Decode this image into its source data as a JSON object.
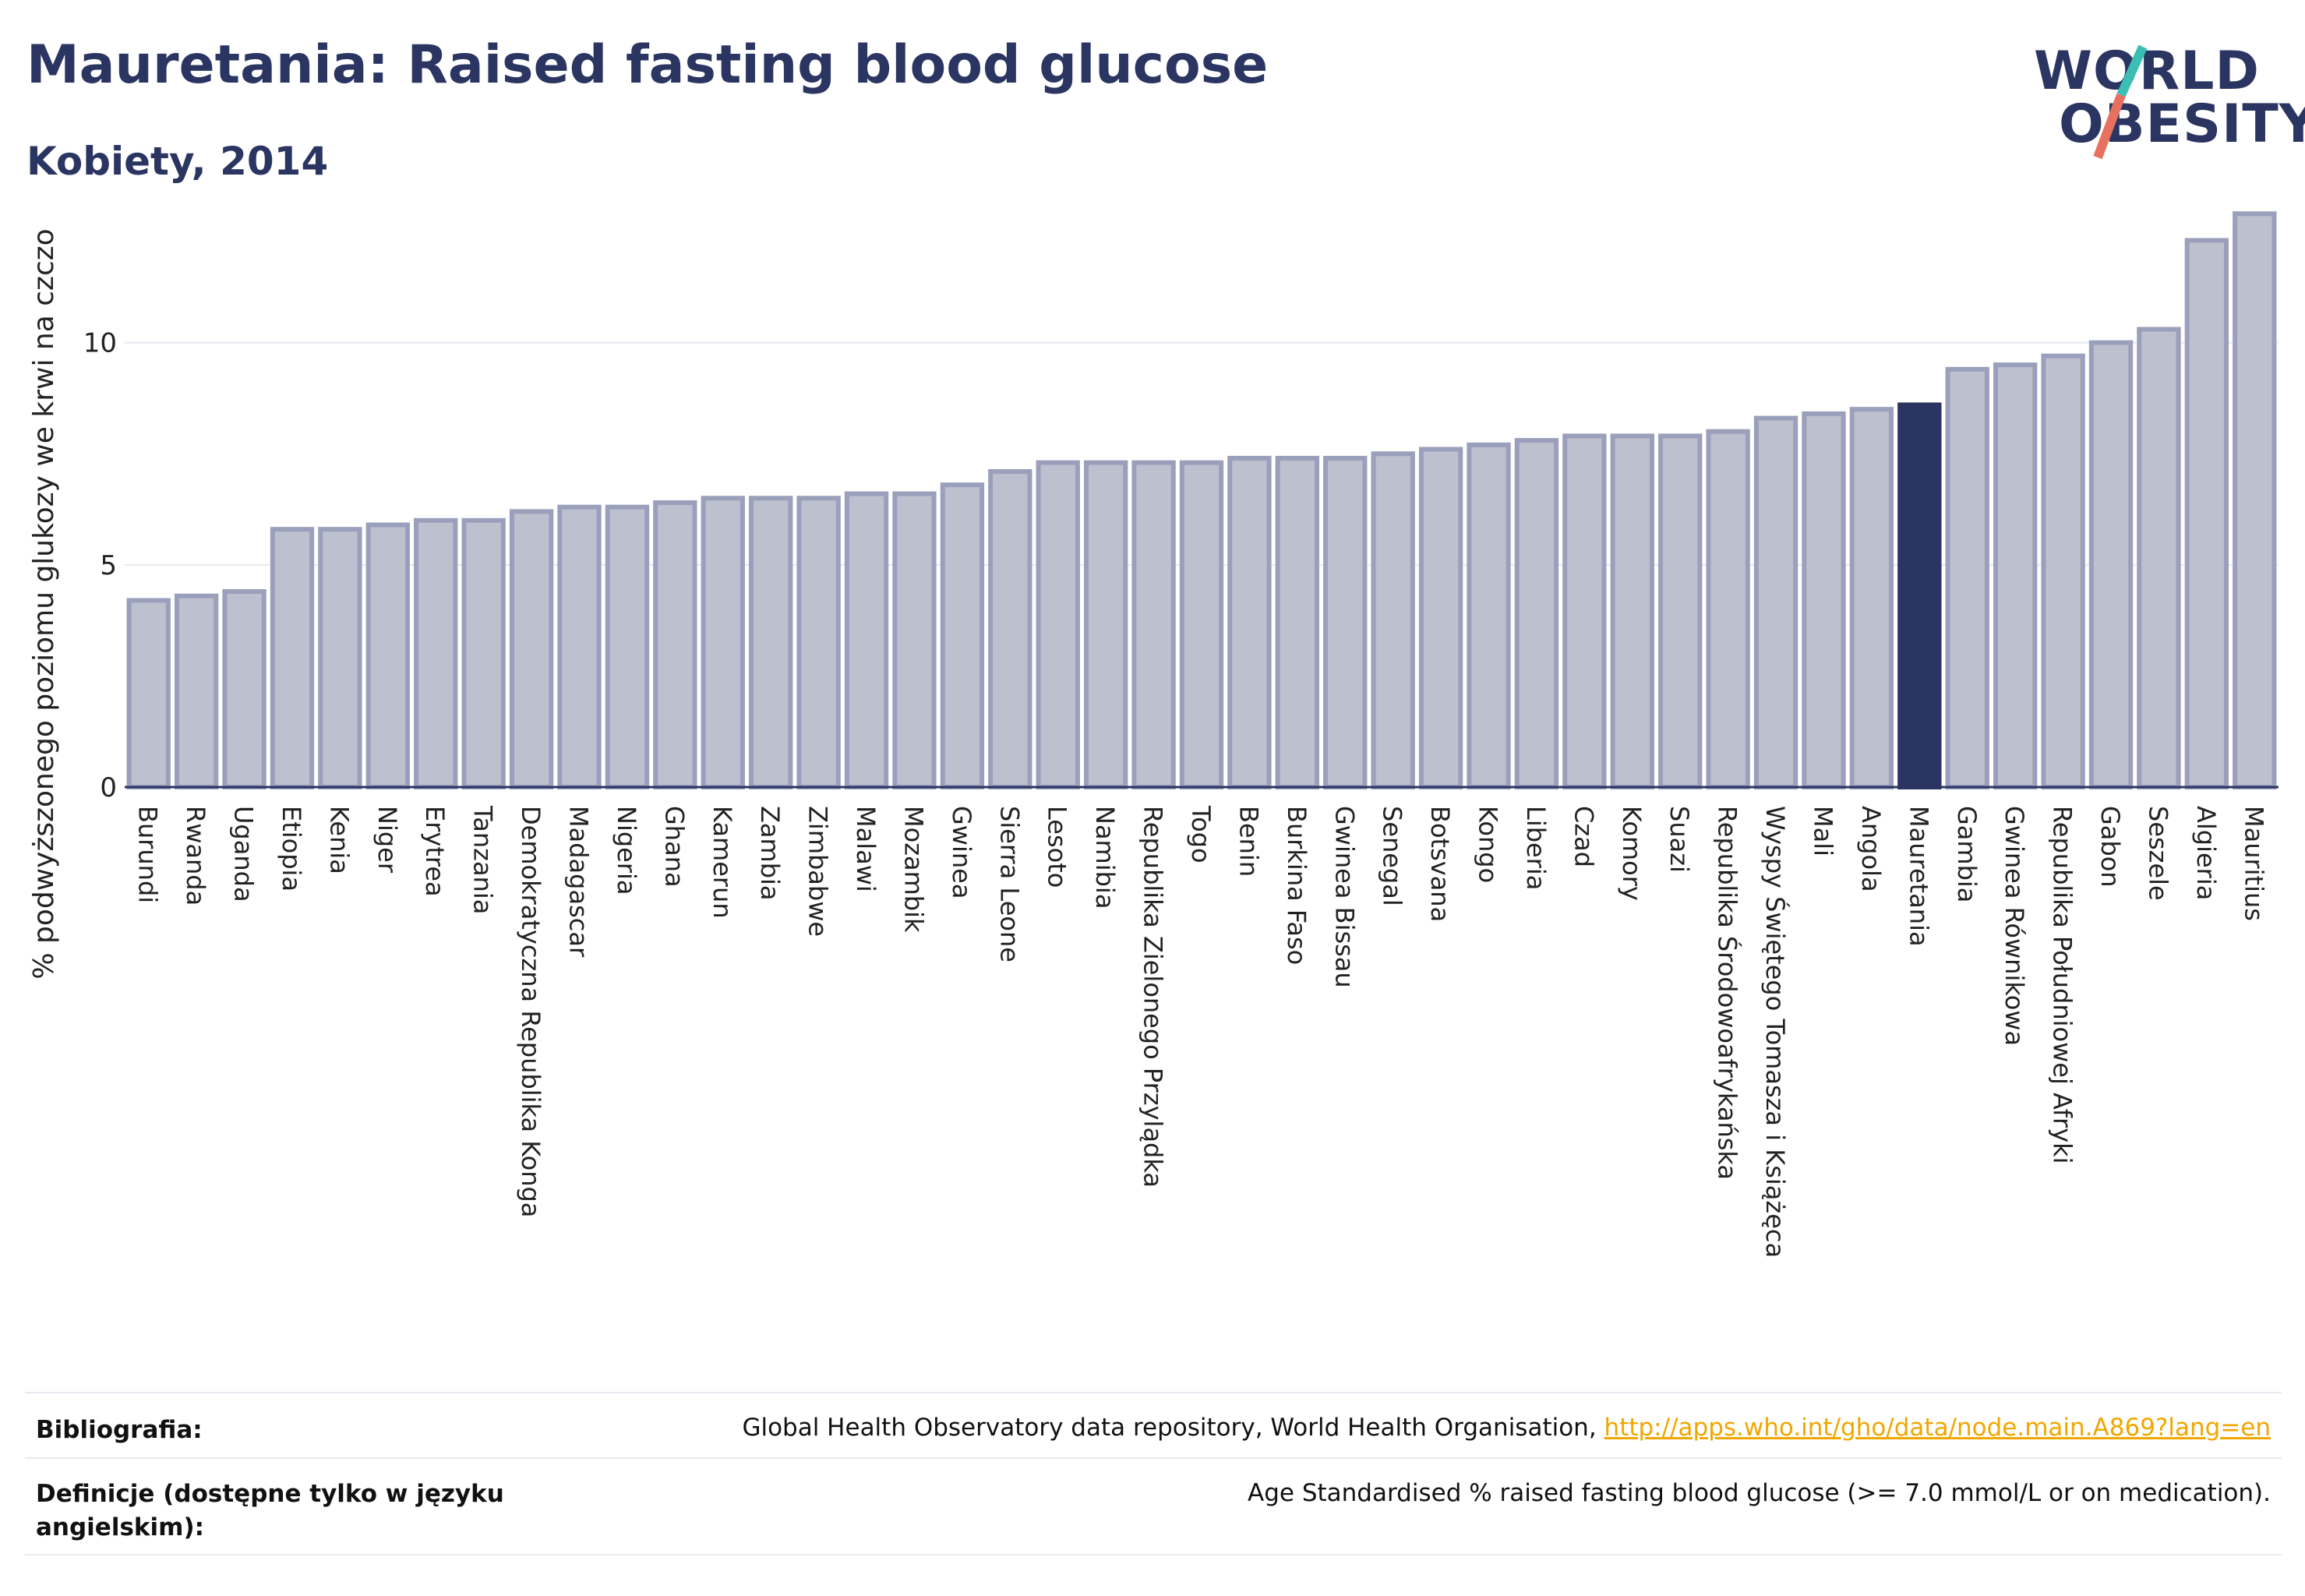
{
  "header": {
    "title": "Mauretania: Raised fasting blood glucose",
    "subtitle": "Kobiety, 2014"
  },
  "logo": {
    "line1": "WORLD",
    "line2": "OBESITY",
    "slash_colors": [
      "#3bbfb4",
      "#e8705e"
    ]
  },
  "chart_data": {
    "type": "bar",
    "title": "Mauretania: Raised fasting blood glucose",
    "subtitle": "Kobiety, 2014",
    "ylabel": "% podwyższonego poziomu glukozy we krwi na czczo",
    "xlabel": "",
    "ylim": [
      0,
      13.5
    ],
    "yticks": [
      0,
      5,
      10
    ],
    "grid": "horizontal",
    "highlight": "Mauretania",
    "colors": {
      "bar": "#bcc0cf",
      "bar_edge": "#9aa0bc",
      "highlight": "#2b3562"
    },
    "categories": [
      "Burundi",
      "Rwanda",
      "Uganda",
      "Etiopia",
      "Kenia",
      "Niger",
      "Erytrea",
      "Tanzania",
      "Demokratyczna Republika Konga",
      "Madagascar",
      "Nigeria",
      "Ghana",
      "Kamerun",
      "Zambia",
      "Zimbabwe",
      "Malawi",
      "Mozambik",
      "Gwinea",
      "Sierra Leone",
      "Lesoto",
      "Namibia",
      "Republika Zielonego Przylądka",
      "Togo",
      "Benin",
      "Burkina Faso",
      "Gwinea Bissau",
      "Senegal",
      "Botsvana",
      "Kongo",
      "Liberia",
      "Czad",
      "Komory",
      "Suazi",
      "Republika Środowoafrykańska",
      "Wyspy Świętego Tomasza i Książęca",
      "Mali",
      "Angola",
      "Mauretania",
      "Gambia",
      "Gwinea Równikowa",
      "Republika Południowej Afryki",
      "Gabon",
      "Seszele",
      "Algieria",
      "Mauritius"
    ],
    "values": [
      4.2,
      4.3,
      4.4,
      5.8,
      5.8,
      5.9,
      6.0,
      6.0,
      6.2,
      6.3,
      6.3,
      6.4,
      6.5,
      6.5,
      6.5,
      6.6,
      6.6,
      6.8,
      7.1,
      7.3,
      7.3,
      7.3,
      7.3,
      7.4,
      7.4,
      7.4,
      7.5,
      7.6,
      7.7,
      7.8,
      7.9,
      7.9,
      7.9,
      8.0,
      8.3,
      8.4,
      8.5,
      8.6,
      9.4,
      9.5,
      9.7,
      10.0,
      10.3,
      12.3,
      12.9
    ]
  },
  "footer": {
    "source_label": "Bibliografia:",
    "source_text": "Global Health Observatory data repository, World Health Organisation, ",
    "source_link": "http://apps.who.int/gho/data/node.main.A869?lang=en",
    "definition_label": "Definicje (dostępne tylko w języku angielskim):",
    "definition_text": "Age Standardised % raised fasting blood glucose (>= 7.0 mmol/L or on medication)."
  }
}
